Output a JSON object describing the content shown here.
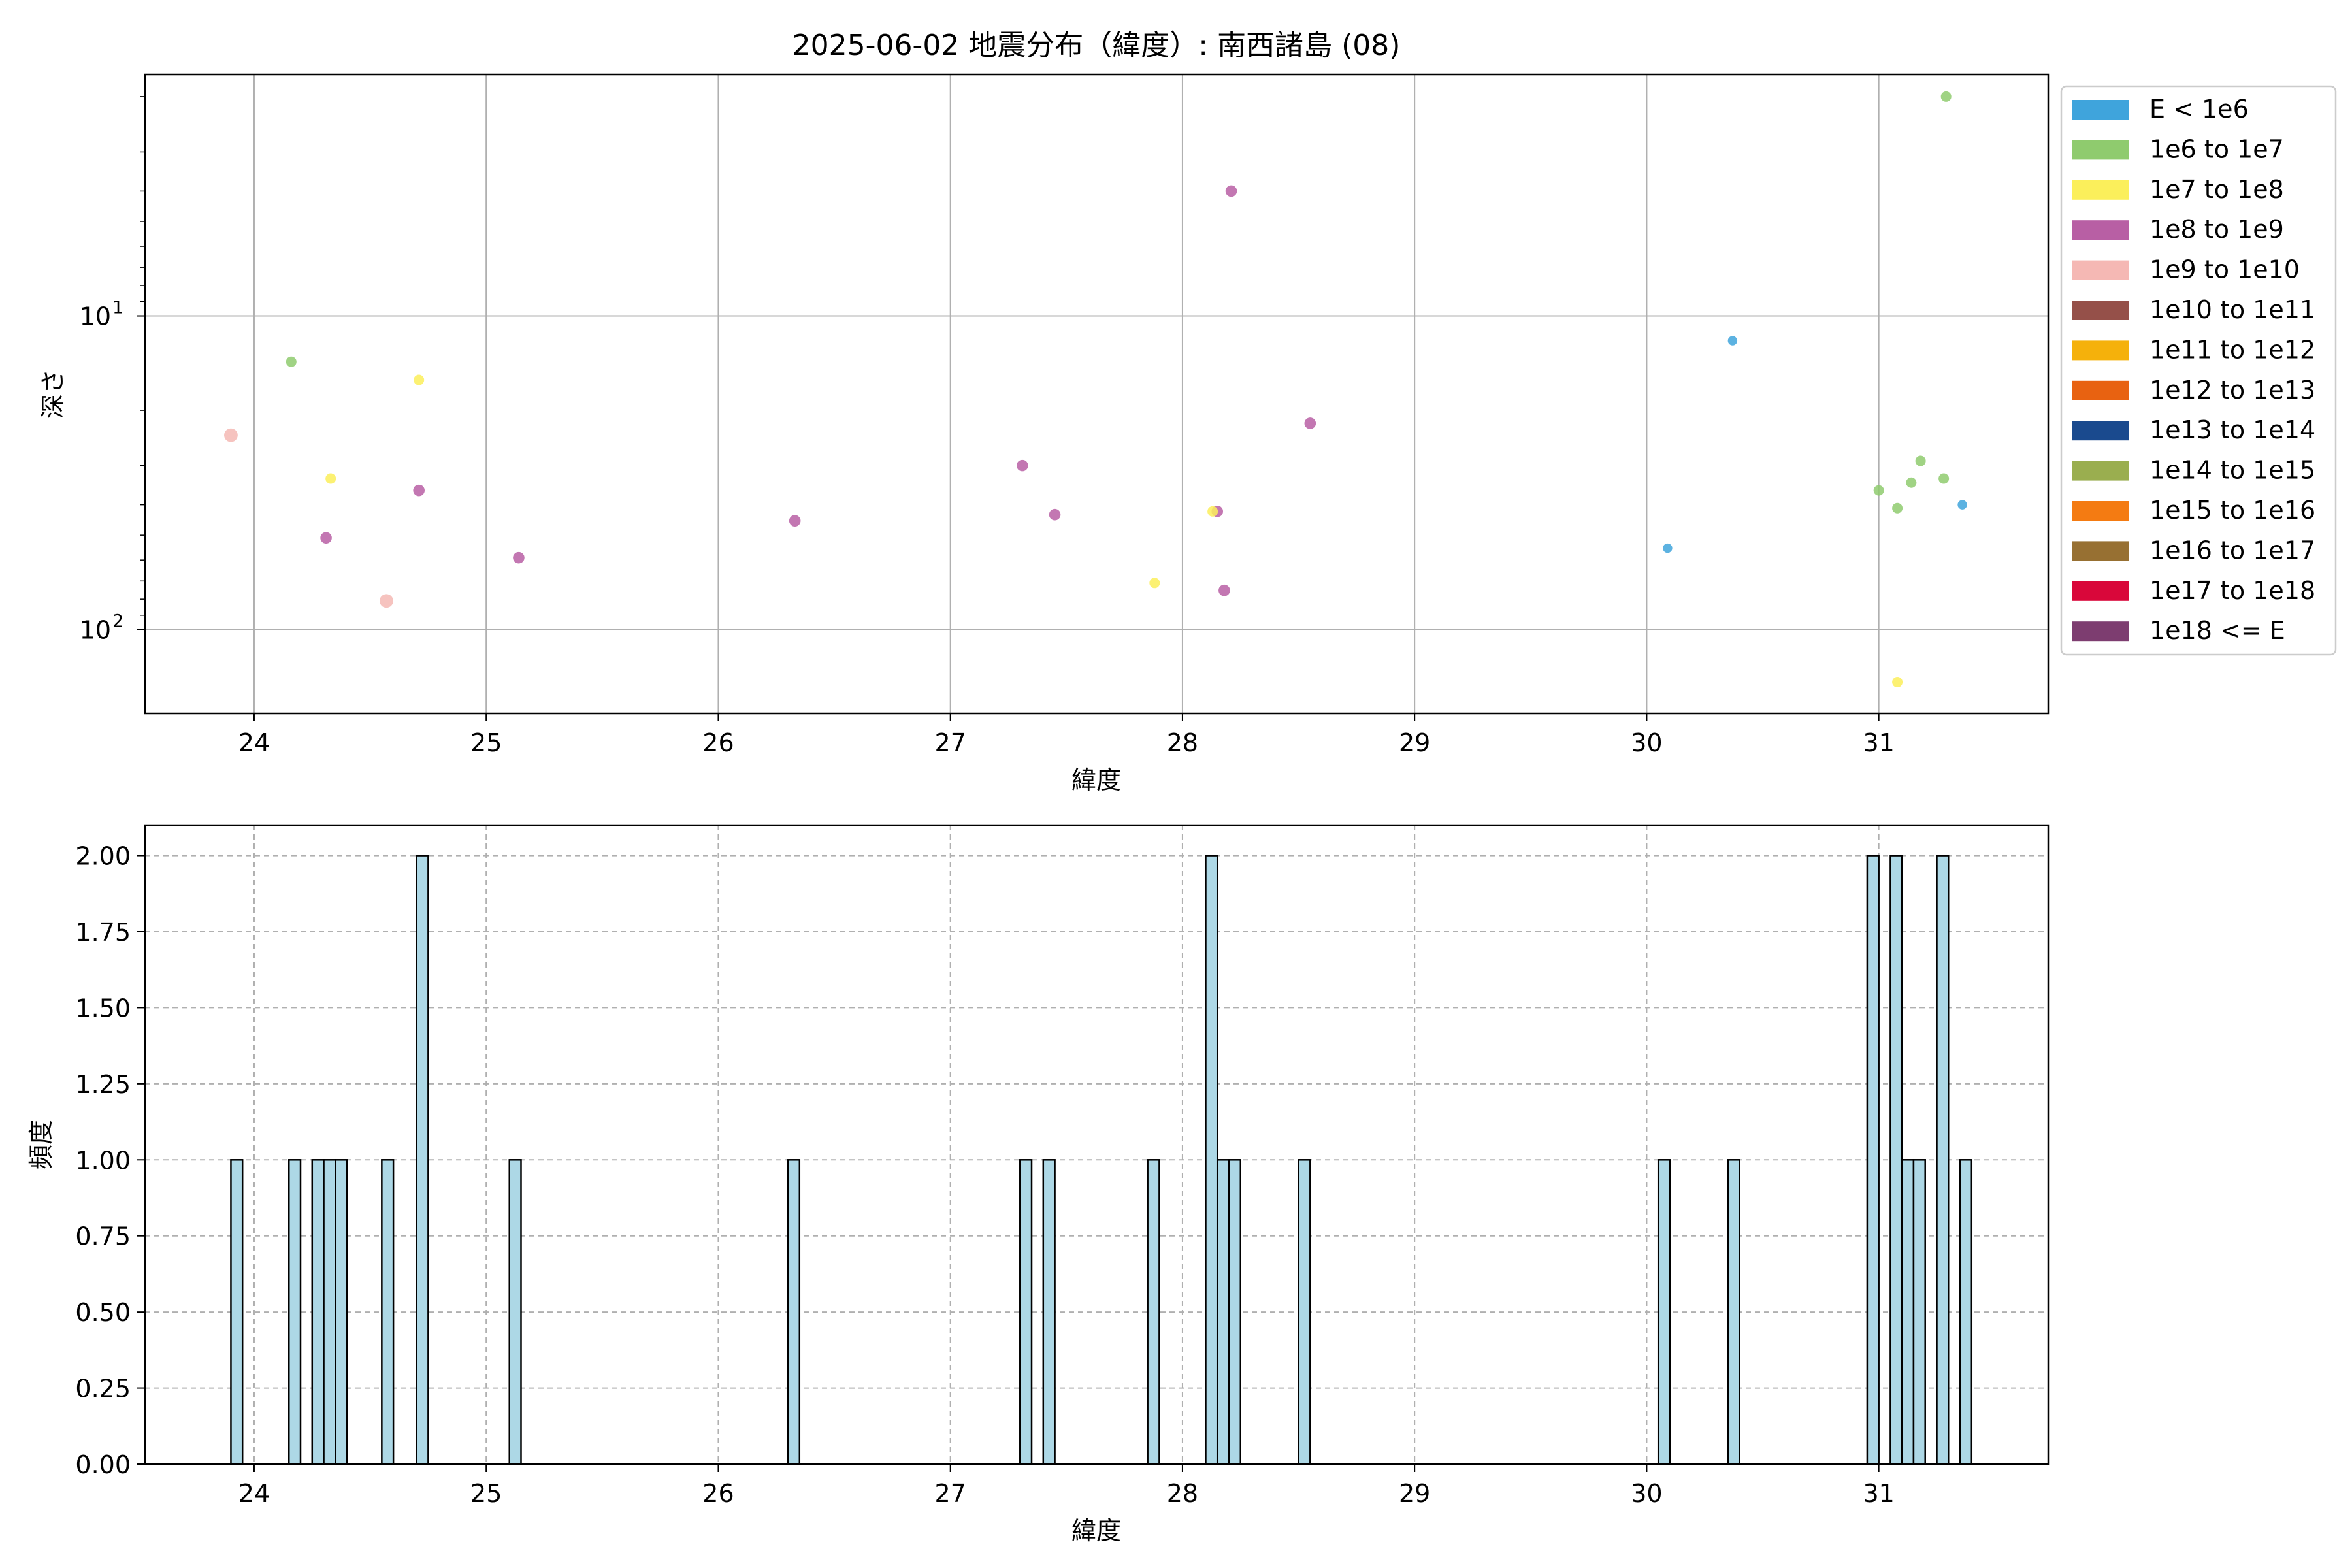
{
  "chart_data": [
    {
      "type": "scatter",
      "title": "2025-06-02 地震分布（緯度）: 南西諸島 (08)",
      "xlabel": "緯度",
      "ylabel": "深さ",
      "xlim": [
        23.53,
        31.73
      ],
      "ylim": [
        185,
        1.7
      ],
      "yscale": "log",
      "yaxis_inverted": true,
      "xticks": [
        {
          "value": 24,
          "label": "24"
        },
        {
          "value": 25,
          "label": "25"
        },
        {
          "value": 26,
          "label": "26"
        },
        {
          "value": 27,
          "label": "27"
        },
        {
          "value": 28,
          "label": "28"
        },
        {
          "value": 29,
          "label": "29"
        },
        {
          "value": 30,
          "label": "30"
        },
        {
          "value": 31,
          "label": "31"
        }
      ],
      "yticks": [
        {
          "value": 10,
          "label": "10",
          "sup": "1"
        },
        {
          "value": 100,
          "label": "10",
          "sup": "2"
        }
      ],
      "grid": true,
      "legend_position": "outside-right",
      "legend": [
        {
          "label": "E < 1e6",
          "color": "#3fa4dc"
        },
        {
          "label": "1e6 to 1e7",
          "color": "#8fcb6e"
        },
        {
          "label": "1e7 to 1e8",
          "color": "#fbef5b"
        },
        {
          "label": "1e8 to 1e9",
          "color": "#b85fa4"
        },
        {
          "label": "1e9 to 1e10",
          "color": "#f5b8b4"
        },
        {
          "label": "1e10 to 1e11",
          "color": "#955049"
        },
        {
          "label": "1e11 to 1e12",
          "color": "#f5b10b"
        },
        {
          "label": "1e12 to 1e13",
          "color": "#e86211"
        },
        {
          "label": "1e13 to 1e14",
          "color": "#1a4a8e"
        },
        {
          "label": "1e14 to 1e15",
          "color": "#9aae4f"
        },
        {
          "label": "1e15 to 1e16",
          "color": "#f47b12"
        },
        {
          "label": "1e16 to 1e17",
          "color": "#977032"
        },
        {
          "label": "1e17 to 1e18",
          "color": "#d9073a"
        },
        {
          "label": "1e18 <= E",
          "color": "#7d3d70"
        }
      ],
      "points": [
        {
          "x": 23.9,
          "y": 24,
          "cls": 4,
          "r": 1.3
        },
        {
          "x": 24.16,
          "y": 14,
          "cls": 1,
          "r": 1
        },
        {
          "x": 24.33,
          "y": 33,
          "cls": 2,
          "r": 1
        },
        {
          "x": 24.31,
          "y": 51,
          "cls": 3,
          "r": 1.1
        },
        {
          "x": 24.57,
          "y": 81,
          "cls": 4,
          "r": 1.3
        },
        {
          "x": 24.71,
          "y": 16,
          "cls": 2,
          "r": 1
        },
        {
          "x": 24.71,
          "y": 36,
          "cls": 3,
          "r": 1.1
        },
        {
          "x": 25.14,
          "y": 59,
          "cls": 3,
          "r": 1.1
        },
        {
          "x": 26.33,
          "y": 45,
          "cls": 3,
          "r": 1.1
        },
        {
          "x": 27.31,
          "y": 30,
          "cls": 3,
          "r": 1.1
        },
        {
          "x": 27.45,
          "y": 43,
          "cls": 3,
          "r": 1.1
        },
        {
          "x": 27.88,
          "y": 71,
          "cls": 2,
          "r": 1
        },
        {
          "x": 28.15,
          "y": 42,
          "cls": 3,
          "r": 1.1
        },
        {
          "x": 28.13,
          "y": 42,
          "cls": 2,
          "r": 1
        },
        {
          "x": 28.18,
          "y": 75,
          "cls": 3,
          "r": 1.1
        },
        {
          "x": 28.21,
          "y": 4,
          "cls": 3,
          "r": 1.1
        },
        {
          "x": 28.55,
          "y": 22,
          "cls": 3,
          "r": 1.1
        },
        {
          "x": 30.09,
          "y": 55,
          "cls": 0,
          "r": 0.9
        },
        {
          "x": 30.37,
          "y": 12,
          "cls": 0,
          "r": 0.9
        },
        {
          "x": 31.0,
          "y": 36,
          "cls": 1,
          "r": 1
        },
        {
          "x": 31.08,
          "y": 41,
          "cls": 1,
          "r": 1
        },
        {
          "x": 31.14,
          "y": 34,
          "cls": 1,
          "r": 1
        },
        {
          "x": 31.18,
          "y": 29,
          "cls": 1,
          "r": 1
        },
        {
          "x": 31.28,
          "y": 33,
          "cls": 1,
          "r": 1
        },
        {
          "x": 31.29,
          "y": 2,
          "cls": 1,
          "r": 1
        },
        {
          "x": 31.36,
          "y": 40,
          "cls": 0,
          "r": 0.9
        },
        {
          "x": 31.08,
          "y": 147,
          "cls": 2,
          "r": 1
        }
      ]
    },
    {
      "type": "bar",
      "title": "",
      "xlabel": "緯度",
      "ylabel": "頻度",
      "xlim": [
        23.53,
        31.73
      ],
      "ylim": [
        0,
        2.1
      ],
      "xticks": [
        {
          "value": 24,
          "label": "24"
        },
        {
          "value": 25,
          "label": "25"
        },
        {
          "value": 26,
          "label": "26"
        },
        {
          "value": 27,
          "label": "27"
        },
        {
          "value": 28,
          "label": "28"
        },
        {
          "value": 29,
          "label": "29"
        },
        {
          "value": 30,
          "label": "30"
        },
        {
          "value": 31,
          "label": "31"
        }
      ],
      "yticks": [
        {
          "value": 0,
          "label": "0.00"
        },
        {
          "value": 0.25,
          "label": "0.25"
        },
        {
          "value": 0.5,
          "label": "0.50"
        },
        {
          "value": 0.75,
          "label": "0.75"
        },
        {
          "value": 1.0,
          "label": "1.00"
        },
        {
          "value": 1.25,
          "label": "1.25"
        },
        {
          "value": 1.5,
          "label": "1.50"
        },
        {
          "value": 1.75,
          "label": "1.75"
        },
        {
          "value": 2.0,
          "label": "2.00"
        }
      ],
      "grid": "dashed",
      "bar_color": "#add8e6",
      "bar_edge_color": "#000000",
      "bin_width": 0.05,
      "bars": [
        {
          "x": 23.9,
          "count": 1
        },
        {
          "x": 24.15,
          "count": 1
        },
        {
          "x": 24.25,
          "count": 1
        },
        {
          "x": 24.3,
          "count": 1
        },
        {
          "x": 24.35,
          "count": 1
        },
        {
          "x": 24.55,
          "count": 1
        },
        {
          "x": 24.7,
          "count": 2
        },
        {
          "x": 25.1,
          "count": 1
        },
        {
          "x": 26.3,
          "count": 1
        },
        {
          "x": 27.3,
          "count": 1
        },
        {
          "x": 27.4,
          "count": 1
        },
        {
          "x": 27.85,
          "count": 1
        },
        {
          "x": 28.1,
          "count": 2
        },
        {
          "x": 28.15,
          "count": 1
        },
        {
          "x": 28.2,
          "count": 1
        },
        {
          "x": 28.5,
          "count": 1
        },
        {
          "x": 30.05,
          "count": 1
        },
        {
          "x": 30.35,
          "count": 1
        },
        {
          "x": 30.95,
          "count": 2
        },
        {
          "x": 31.05,
          "count": 2
        },
        {
          "x": 31.1,
          "count": 1
        },
        {
          "x": 31.15,
          "count": 1
        },
        {
          "x": 31.25,
          "count": 2
        },
        {
          "x": 31.35,
          "count": 1
        }
      ]
    }
  ]
}
